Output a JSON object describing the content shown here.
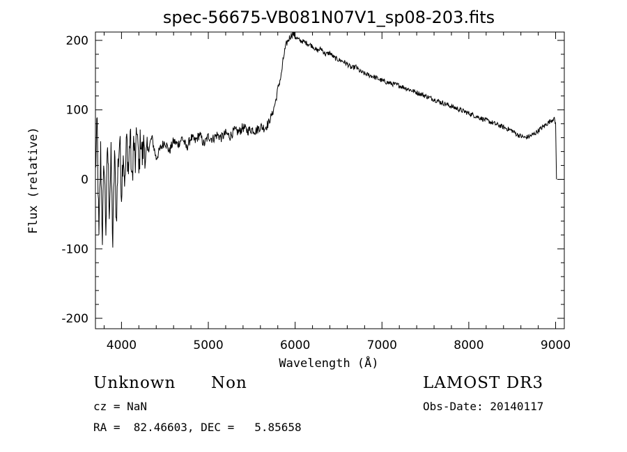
{
  "chart_data": {
    "type": "line",
    "title": "spec-56675-VB081N07V1_sp08-203.fits",
    "xlabel": "Wavelength (Å)",
    "ylabel": "Flux (relative)",
    "xlim": [
      3700,
      9100
    ],
    "ylim": [
      -215,
      212
    ],
    "xticks": [
      4000,
      5000,
      6000,
      7000,
      8000,
      9000
    ],
    "yticks": [
      -200,
      -100,
      0,
      100,
      200
    ],
    "ytick_labels": [
      "-200",
      "-100",
      "0",
      "100",
      "200"
    ],
    "grid": false,
    "series": [
      {
        "x": [
          3700,
          3720,
          3740,
          3760,
          3780,
          3800,
          3820,
          3840,
          3860,
          3880,
          3900,
          3920,
          3940,
          3960,
          3980,
          4000,
          4020,
          4040,
          4060,
          4080,
          4100,
          4120,
          4140,
          4160,
          4180,
          4200,
          4220,
          4240,
          4260,
          4280,
          4300,
          4350,
          4400,
          4450,
          4500,
          4550,
          4600,
          4650,
          4700,
          4750,
          4800,
          4850,
          4900,
          4950,
          5000,
          5050,
          5100,
          5150,
          5200,
          5250,
          5300,
          5350,
          5400,
          5450,
          5500,
          5550,
          5600,
          5650,
          5700,
          5720,
          5740,
          5760,
          5780,
          5800,
          5820,
          5840,
          5860,
          5880,
          5900,
          5920,
          5940,
          5960,
          5980,
          6000,
          6050,
          6100,
          6150,
          6200,
          6250,
          6300,
          6350,
          6400,
          6450,
          6500,
          6550,
          6600,
          6650,
          6700,
          6750,
          6800,
          6850,
          6900,
          6950,
          7000,
          7100,
          7200,
          7300,
          7400,
          7500,
          7600,
          7700,
          7800,
          7900,
          8000,
          8100,
          8200,
          8300,
          8400,
          8500,
          8550,
          8600,
          8650,
          8700,
          8750,
          8800,
          8850,
          8900,
          8950,
          8980,
          9000,
          9010
        ],
        "y": [
          10,
          80,
          -90,
          40,
          -80,
          30,
          -70,
          50,
          -40,
          30,
          -95,
          40,
          -60,
          20,
          60,
          -20,
          45,
          -10,
          60,
          10,
          70,
          -10,
          55,
          20,
          80,
          5,
          65,
          30,
          55,
          25,
          40,
          60,
          30,
          45,
          55,
          40,
          55,
          50,
          60,
          45,
          60,
          55,
          65,
          50,
          62,
          58,
          64,
          60,
          66,
          62,
          70,
          68,
          75,
          70,
          72,
          70,
          76,
          74,
          82,
          90,
          95,
          105,
          115,
          130,
          140,
          150,
          170,
          185,
          195,
          200,
          205,
          208,
          210,
          205,
          200,
          198,
          195,
          192,
          185,
          188,
          180,
          182,
          175,
          172,
          170,
          166,
          160,
          162,
          155,
          152,
          150,
          148,
          145,
          142,
          138,
          135,
          130,
          125,
          120,
          115,
          110,
          105,
          100,
          95,
          90,
          85,
          80,
          75,
          70,
          65,
          62,
          60,
          62,
          65,
          70,
          75,
          80,
          85,
          88,
          80,
          0
        ]
      }
    ]
  },
  "info": {
    "object_class": "Unknown",
    "subclass": "Non",
    "survey": "LAMOST DR3",
    "cz": "cz = NaN",
    "obs_date": "Obs-Date: 20140117",
    "coords": "RA =  82.46603, DEC =   5.85658"
  }
}
